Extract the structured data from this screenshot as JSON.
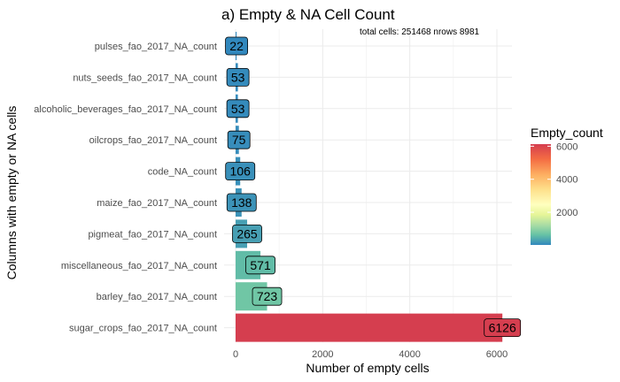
{
  "chart_data": {
    "type": "bar",
    "orientation": "horizontal",
    "title": "a) Empty & NA Cell Count",
    "xlabel": "Number of empty cells",
    "ylabel": "Columns with empty or NA cells",
    "annotation": "total cells: 251468  nrows 8981",
    "categories": [
      "pulses_fao_2017_NA_count",
      "nuts_seeds_fao_2017_NA_count",
      "alcoholic_beverages_fao_2017_NA_count",
      "oilcrops_fao_2017_NA_count",
      "code_NA_count",
      "maize_fao_2017_NA_count",
      "pigmeat_fao_2017_NA_count",
      "miscellaneous_fao_2017_NA_count",
      "barley_fao_2017_NA_count",
      "sugar_crops_fao_2017_NA_count"
    ],
    "values": [
      22,
      53,
      53,
      75,
      106,
      138,
      265,
      571,
      723,
      6126
    ],
    "data_labels": [
      "22",
      "53",
      "53",
      "75",
      "106",
      "138",
      "265",
      "571",
      "723",
      "6126"
    ],
    "xlim": [
      -200,
      6500
    ],
    "xticks": [
      0,
      2000,
      4000,
      6000
    ],
    "xtick_labels": [
      "0",
      "2000",
      "4000",
      "6000"
    ],
    "grid": true,
    "legend": {
      "title": "Empty_count",
      "placement": "right",
      "type": "colorbar",
      "range": [
        22,
        6126
      ],
      "ticks": [
        2000,
        4000,
        6000
      ],
      "tick_labels": [
        "2000",
        "4000",
        "6000"
      ],
      "palette": "Spectral"
    },
    "colors": {
      "spectral_low": "#3288bd",
      "spectral_high": "#d53e4f",
      "grid_major": "#ebebeb",
      "grid_minor": "#f5f5f5"
    }
  }
}
